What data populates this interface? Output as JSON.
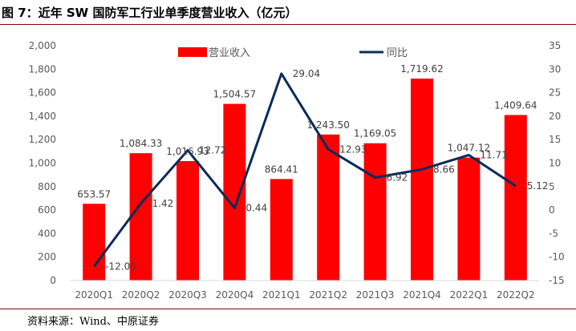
{
  "title": "图 7：近年 SW 国防军工行业单季度营业收入（亿元）",
  "source": "资料来源：Wind、中原证券",
  "colors": {
    "bar": "#ff0000",
    "line": "#0b2a5a",
    "axis_text": "#595959",
    "gridline": "#d9d9d9"
  },
  "chart_data": {
    "type": "bar",
    "title": "近年 SW 国防军工行业单季度营业收入（亿元）",
    "categories": [
      "2020Q1",
      "2020Q2",
      "2020Q3",
      "2020Q4",
      "2021Q1",
      "2021Q2",
      "2021Q3",
      "2021Q4",
      "2022Q1",
      "2022Q2"
    ],
    "series": [
      {
        "name": "营业收入",
        "type": "bar",
        "axis": "left",
        "values": [
          653.57,
          1084.33,
          1016.93,
          1504.57,
          864.41,
          1243.5,
          1169.05,
          1719.62,
          1047.12,
          1409.64
        ],
        "labels": [
          "653.57",
          "1,084.33",
          "1,016.93",
          "1,504.57",
          "864.41",
          "1,243.50",
          "1,169.05",
          "1,719.62",
          "1,047.12",
          "1,409.64"
        ]
      },
      {
        "name": "同比",
        "type": "line",
        "axis": "right",
        "values": [
          -12.0,
          1.42,
          12.72,
          0.44,
          29.04,
          12.93,
          6.92,
          8.66,
          11.71,
          5.12
        ],
        "labels": [
          "-12.00",
          "1.42",
          "12.72",
          "0.44",
          "29.04",
          "12.93",
          "6.92",
          "8.66",
          "11.71",
          "5.12"
        ]
      }
    ],
    "y_left": {
      "min": 0,
      "max": 2000,
      "step": 200,
      "ticks": [
        "0",
        "200",
        "400",
        "600",
        "800",
        "1,000",
        "1,200",
        "1,400",
        "1,600",
        "1,800",
        "2,000"
      ]
    },
    "y_right": {
      "min": -15,
      "max": 35,
      "step": 5,
      "ticks": [
        "-15",
        "-10",
        "-5",
        "0",
        "5",
        "10",
        "15",
        "20",
        "25",
        "30",
        "35"
      ]
    },
    "legend": {
      "position": "top-center",
      "entries": [
        "营业收入",
        "同比"
      ]
    },
    "grid": false
  }
}
